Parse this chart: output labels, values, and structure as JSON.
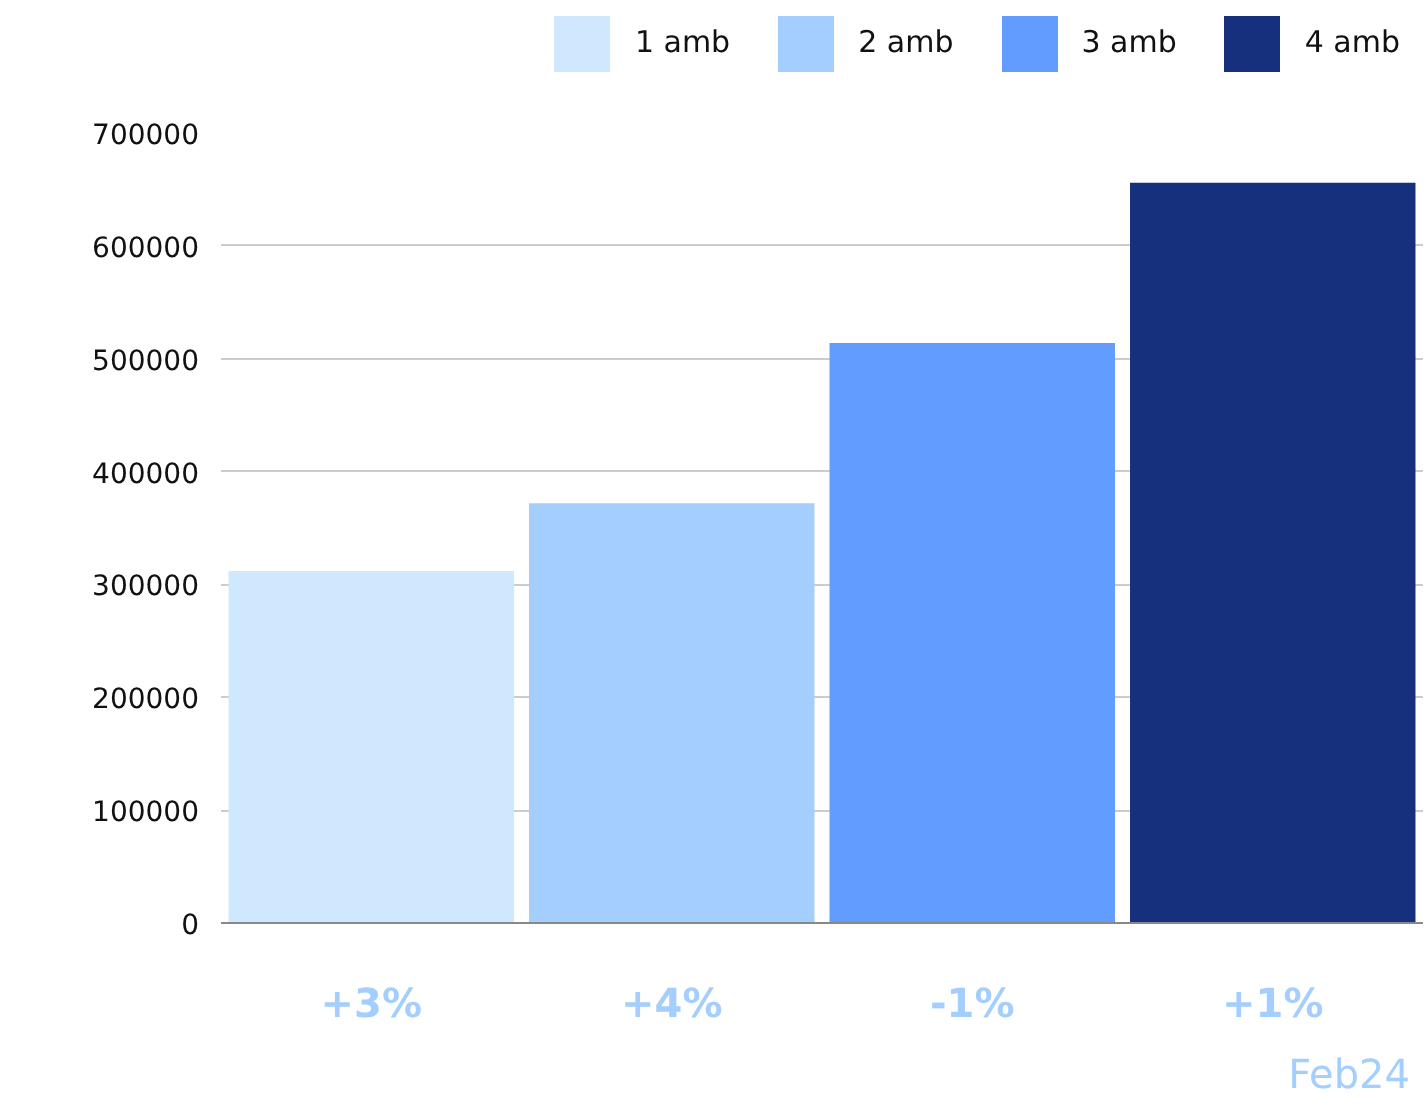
{
  "chart_data": {
    "type": "bar",
    "categories": [
      "+3%",
      "+4%",
      "-1%",
      "+1%"
    ],
    "series": [
      {
        "name": "1 amb",
        "color": "#d0e8fd",
        "values": [
          312000,
          null,
          null,
          null
        ]
      },
      {
        "name": "2 amb",
        "color": "#a3cefd",
        "values": [
          null,
          372000,
          null,
          null
        ]
      },
      {
        "name": "3 amb",
        "color": "#629dfe",
        "values": [
          null,
          null,
          514000,
          null
        ]
      },
      {
        "name": "4 amb",
        "color": "#17307e",
        "values": [
          null,
          null,
          null,
          656000
        ]
      }
    ],
    "ylim": [
      0,
      700000
    ],
    "yticks": [
      0,
      100000,
      200000,
      300000,
      400000,
      500000,
      600000,
      700000
    ],
    "grid": "y",
    "legend": "top",
    "annotations": [
      "Feb24"
    ]
  }
}
